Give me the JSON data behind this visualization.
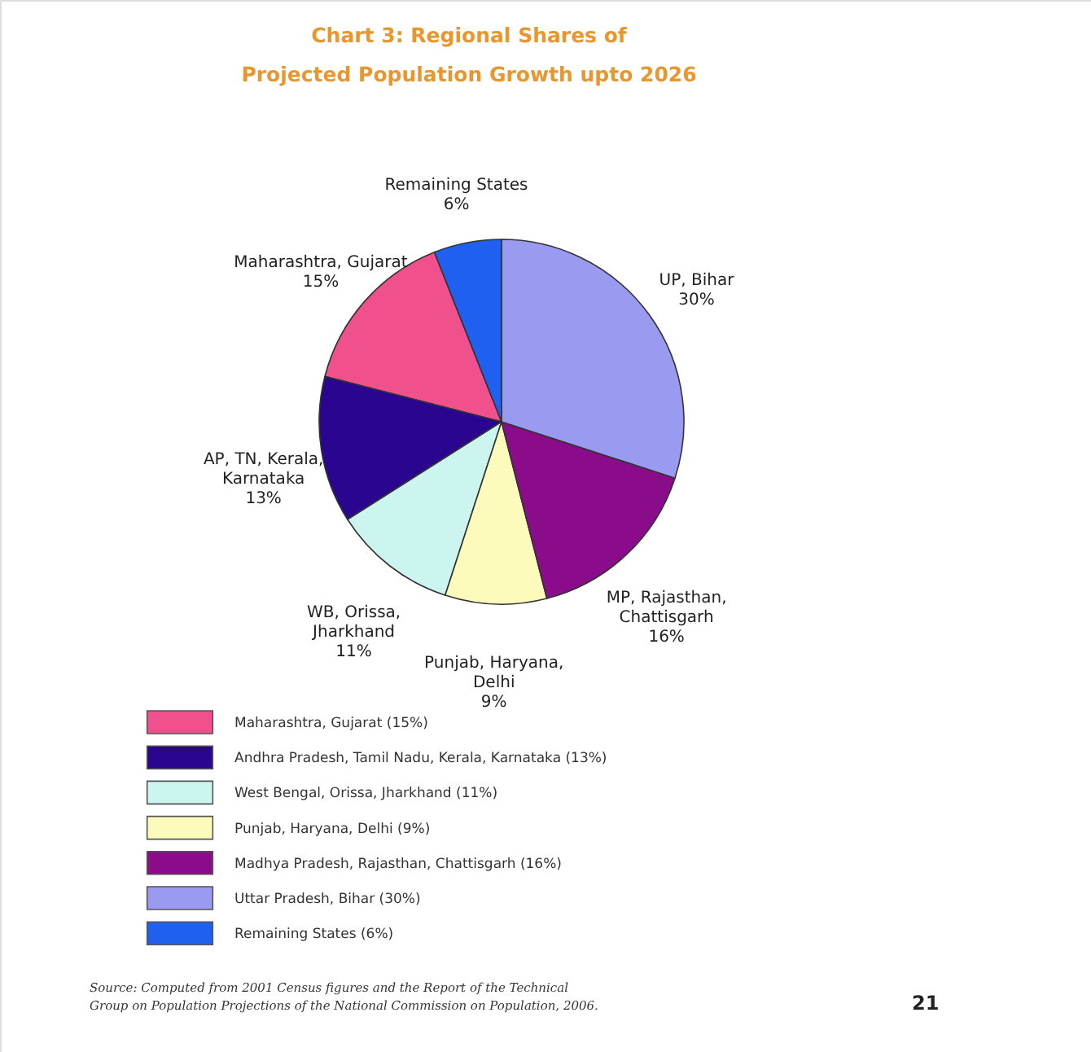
{
  "chart_data": {
    "type": "pie",
    "title": "Chart 3: Regional Shares of Projected Population Growth upto 2026",
    "categories": [
      "Maharashtra, Gujarat (15%)",
      "Andhra Pradesh, Tamil Nadu, Kerala, Karnataka (13%)",
      "West Bengal, Orissa, Jharkhand (11%)",
      "Punjab, Haryana, Delhi (9%)",
      "Madhya Pradesh, Rajasthan, Chattisgarh (16%)",
      "Uttar Pradesh, Bihar (30%)",
      "Remaining States (6%)"
    ],
    "values": [
      15,
      13,
      11,
      9,
      16,
      30,
      6
    ],
    "colors": [
      "#f0508c",
      "#2a0590",
      "#ccf5f0",
      "#fdfbbb",
      "#8a0c8a",
      "#9a9af0",
      "#2060f0"
    ],
    "value_labels": [
      "Maharashtra, Gujarat\n15%",
      "AP, TN, Kerala,\nKarnataka\n13%",
      "WB, Orissa,\nJharkhand\n11%",
      "Punjab, Haryana,\nDelhi\n9%",
      "MP, Rajasthan,\nChattisgarh\n16%",
      "UP, Bihar\n30%",
      "Remaining States\n6%"
    ],
    "legend": "bottom left",
    "annotations": [
      "Source: Computed from 2001 Census figures and the Report of the Technical Group on Population Projections of the National Commission on Population, 2006.",
      "21"
    ]
  }
}
